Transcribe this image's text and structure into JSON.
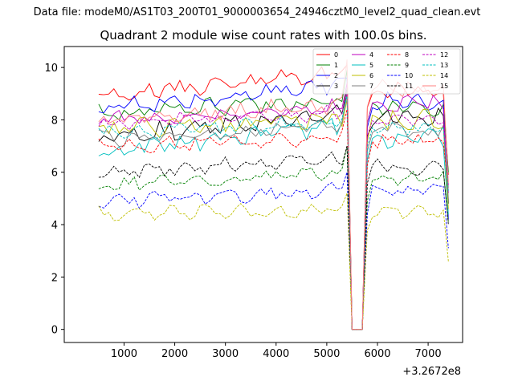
{
  "figure": {
    "suptitle": "Data file: modeM0/AS1T03_200T01_9000003654_24946cztM0_level2_quad_clean.evt",
    "title": "Quadrant 2 module wise count rates with 100.0s bins.",
    "offset_label": "+3.2672e8"
  },
  "chart_data": {
    "type": "line",
    "title": "Quadrant 2 module wise count rates with 100.0s bins.",
    "xlabel": "",
    "ylabel": "",
    "x_offset": "+3.2672e8",
    "xlim": [
      -180,
      7680
    ],
    "ylim": [
      -0.5,
      10.8
    ],
    "xticks": [
      1000,
      2000,
      3000,
      4000,
      5000,
      6000,
      7000
    ],
    "xtick_labels": [
      "1000",
      "2000",
      "3000",
      "4000",
      "5000",
      "6000",
      "7000"
    ],
    "yticks": [
      0,
      2,
      4,
      6,
      8,
      10
    ],
    "ytick_labels": [
      "0",
      "2",
      "4",
      "6",
      "8",
      "10"
    ],
    "legend_position": "top-right",
    "x_start": 500,
    "x_step": 100,
    "segment1_end": 5400,
    "gap_x": [
      5500,
      5600,
      5700
    ],
    "segment2_start": 5800,
    "segment2_end": 7300,
    "x_end": 7400,
    "series": [
      {
        "name": "0",
        "color": "#ff0000",
        "dashed": false,
        "base": 8.9,
        "trend": 0.9,
        "base2": 9.1,
        "spike": 10.1,
        "end": 5.9,
        "noise": 0.25,
        "seed": 1
      },
      {
        "name": "1",
        "color": "#008000",
        "dashed": false,
        "base": 8.3,
        "trend": 0.4,
        "base2": 8.5,
        "spike": 9.9,
        "end": 6.0,
        "noise": 0.25,
        "seed": 2
      },
      {
        "name": "2",
        "color": "#0000ff",
        "dashed": false,
        "base": 8.4,
        "trend": 1.0,
        "base2": 8.7,
        "spike": 9.6,
        "end": 4.2,
        "noise": 0.25,
        "seed": 3
      },
      {
        "name": "3",
        "color": "#000000",
        "dashed": false,
        "base": 7.3,
        "trend": 1.0,
        "base2": 8.1,
        "spike": 9.2,
        "end": 4.8,
        "noise": 0.28,
        "seed": 4
      },
      {
        "name": "4",
        "color": "#bf00bf",
        "dashed": false,
        "base": 8.0,
        "trend": 0.5,
        "base2": 8.6,
        "spike": 9.4,
        "end": 5.2,
        "noise": 0.22,
        "seed": 5
      },
      {
        "name": "5",
        "color": "#00bfbf",
        "dashed": false,
        "base": 6.7,
        "trend": 1.1,
        "base2": 7.3,
        "spike": 9.0,
        "end": 4.4,
        "noise": 0.3,
        "seed": 6
      },
      {
        "name": "6",
        "color": "#bfbf00",
        "dashed": false,
        "base": 7.6,
        "trend": 0.5,
        "base2": 8.0,
        "spike": 8.8,
        "end": 4.6,
        "noise": 0.3,
        "seed": 7
      },
      {
        "name": "7",
        "color": "#808080",
        "dashed": false,
        "base": 7.3,
        "trend": 0.5,
        "base2": 7.6,
        "spike": 9.2,
        "end": 5.0,
        "noise": 0.22,
        "seed": 8
      },
      {
        "name": "8",
        "color": "#ff0000",
        "dashed": true,
        "base": 7.0,
        "trend": 0.3,
        "base2": 7.2,
        "spike": 8.4,
        "end": 5.4,
        "noise": 0.2,
        "seed": 9
      },
      {
        "name": "9",
        "color": "#008000",
        "dashed": true,
        "base": 5.5,
        "trend": 0.5,
        "base2": 5.8,
        "spike": 7.0,
        "end": 4.1,
        "noise": 0.2,
        "seed": 10
      },
      {
        "name": "10",
        "color": "#0000ff",
        "dashed": true,
        "base": 4.9,
        "trend": 0.4,
        "base2": 5.3,
        "spike": 6.0,
        "end": 3.1,
        "noise": 0.2,
        "seed": 11
      },
      {
        "name": "11",
        "color": "#000000",
        "dashed": true,
        "base": 6.0,
        "trend": 0.5,
        "base2": 6.2,
        "spike": 7.0,
        "end": 4.0,
        "noise": 0.2,
        "seed": 12
      },
      {
        "name": "12",
        "color": "#bf00bf",
        "dashed": true,
        "base": 7.8,
        "trend": 0.5,
        "base2": 8.0,
        "spike": 9.0,
        "end": 5.5,
        "noise": 0.2,
        "seed": 13
      },
      {
        "name": "13",
        "color": "#00bfbf",
        "dashed": true,
        "base": 7.5,
        "trend": 0.4,
        "base2": 7.7,
        "spike": 8.9,
        "end": 5.3,
        "noise": 0.2,
        "seed": 14
      },
      {
        "name": "14",
        "color": "#bfbf00",
        "dashed": true,
        "base": 4.4,
        "trend": 0.2,
        "base2": 4.5,
        "spike": 5.2,
        "end": 2.6,
        "noise": 0.18,
        "seed": 15
      },
      {
        "name": "15",
        "color": "#ff8080",
        "dashed": false,
        "base": 8.0,
        "trend": 0.6,
        "base2": 9.2,
        "spike": 10.3,
        "end": 5.6,
        "noise": 0.25,
        "seed": 16
      }
    ]
  }
}
